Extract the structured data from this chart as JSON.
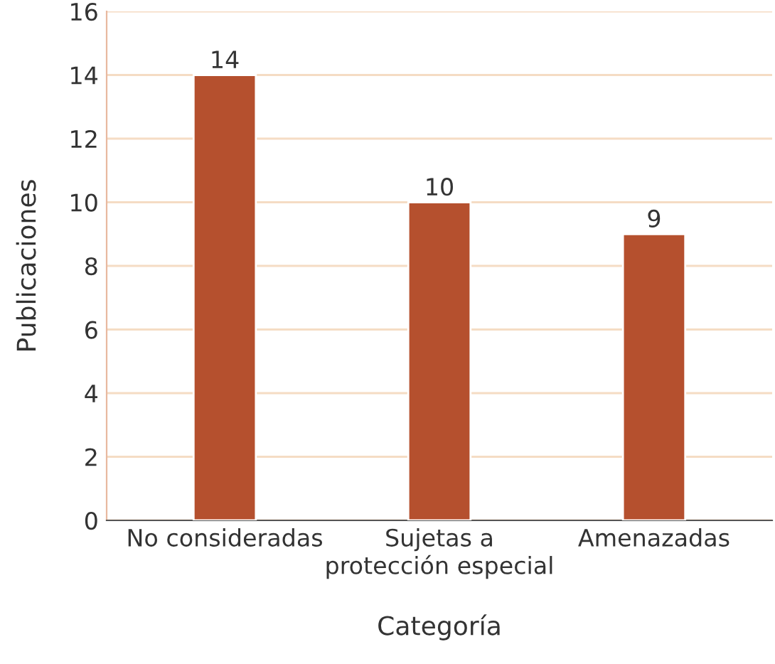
{
  "chart_data": {
    "type": "bar",
    "xlabel": "Categoría",
    "ylabel": "Publicaciones",
    "categories": [
      "No consideradas",
      "Sujetas a\nprotección especial",
      "Amenazadas"
    ],
    "values": [
      14,
      10,
      9
    ],
    "color": "#b5502e",
    "ylim": [
      0,
      16
    ],
    "yticks": [
      0,
      2,
      4,
      6,
      8,
      10,
      12,
      14,
      16
    ],
    "grid": "y",
    "data_labels": true
  }
}
